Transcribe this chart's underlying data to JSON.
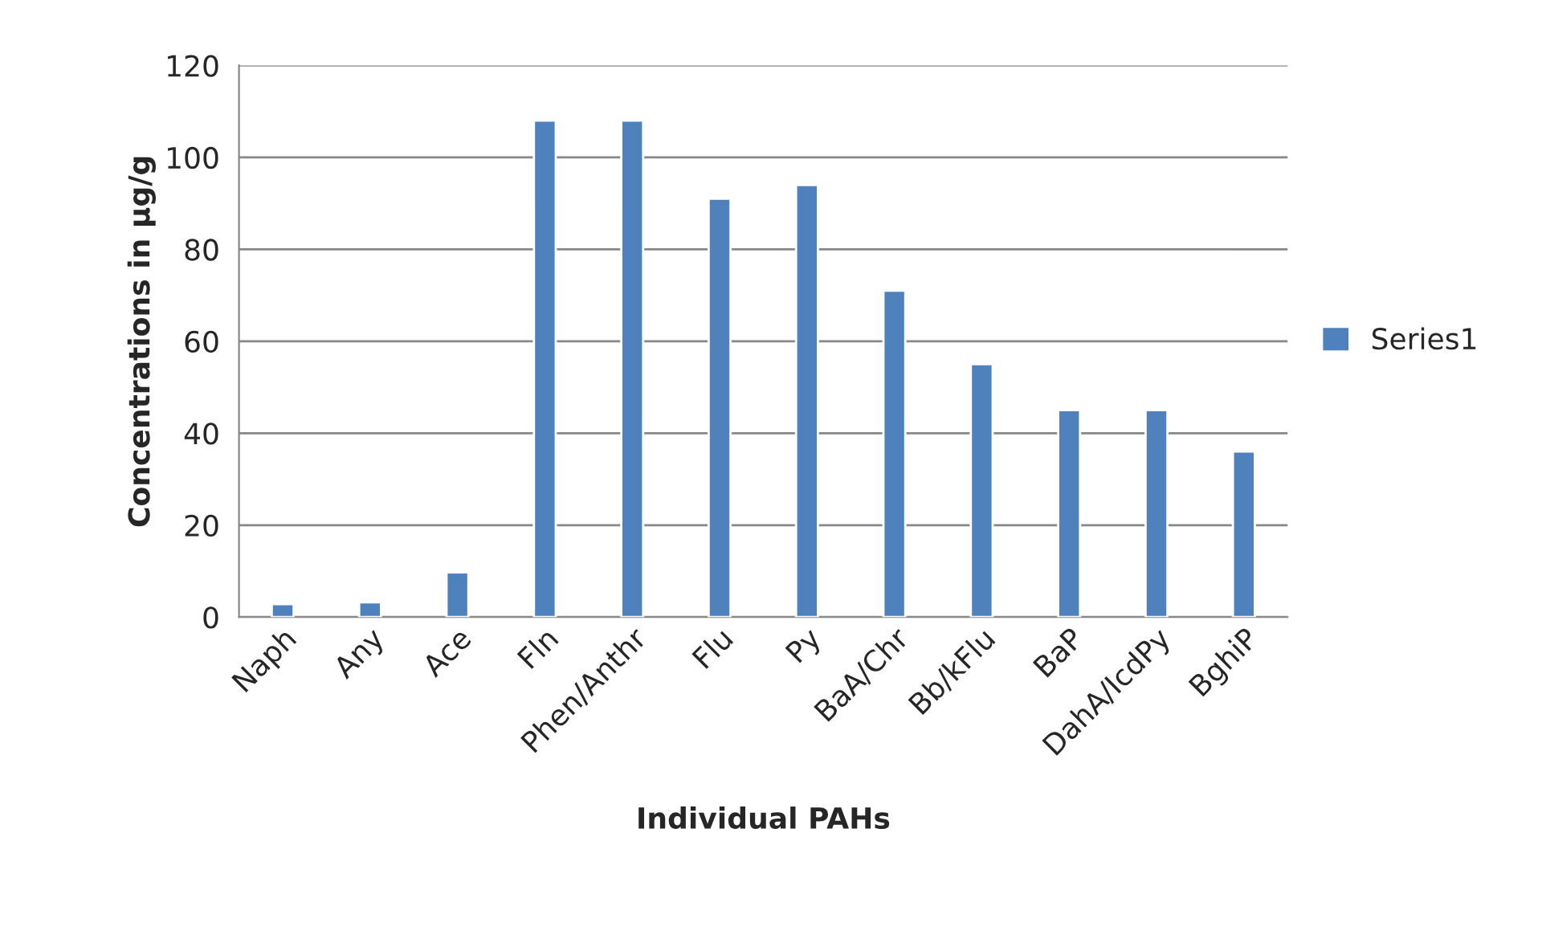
{
  "chart_data": {
    "type": "bar",
    "xlabel": "Individual PAHs",
    "ylabel": "Concentrations in µg/g",
    "categories": [
      "Naph",
      "Any",
      "Ace",
      "Fln",
      "Phen/Anthr",
      "Flu",
      "Py",
      "BaA/Chr",
      "Bb/kFlu",
      "BaP",
      "DahA/IcdPy",
      "BghiP"
    ],
    "series": [
      {
        "name": "Series1",
        "color": "#4f81bd",
        "values": [
          2.8,
          3.2,
          9.7,
          108,
          108,
          91,
          94,
          71,
          55,
          45,
          45,
          36
        ]
      }
    ],
    "ylim": [
      0,
      120
    ],
    "yticks": [
      0,
      20,
      40,
      60,
      80,
      100,
      120
    ],
    "grid": "y",
    "legend": "right"
  }
}
